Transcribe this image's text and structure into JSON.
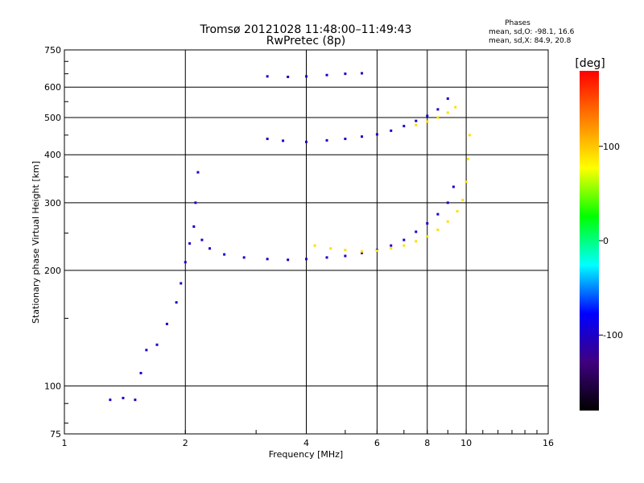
{
  "chart_data": {
    "type": "scatter",
    "title": "Tromsø 20121028 11:48:00–11:49:43",
    "subtitle": "RwPretec (8p)",
    "xlabel": "Frequency [MHz]",
    "ylabel": "Stationary phase Virtual Height [km]",
    "x_scale": "log",
    "y_scale": "log",
    "xlim": [
      1,
      16
    ],
    "ylim": [
      75,
      750
    ],
    "x_ticks": [
      1,
      2,
      4,
      6,
      8,
      10,
      16
    ],
    "y_ticks": [
      75,
      100,
      200,
      300,
      400,
      500,
      600,
      750
    ],
    "grid": true,
    "legend_title": "Phases",
    "legend_lines": [
      "mean, sd,O: -98.1, 16.6",
      "mean, sd,X:  84.9, 20.8"
    ],
    "colorbar": {
      "label": "[deg]",
      "range": [
        -180,
        180
      ],
      "ticks": [
        100,
        0,
        -100
      ],
      "colors": [
        "#ff0000",
        "#ff8000",
        "#ffff00",
        "#00ff00",
        "#00ffff",
        "#0000ff",
        "#400080",
        "#000000"
      ]
    },
    "series": [
      {
        "mode": "O",
        "phase": -100,
        "points": [
          [
            1.3,
            92
          ],
          [
            1.4,
            93
          ],
          [
            1.5,
            92
          ],
          [
            1.55,
            108
          ],
          [
            1.6,
            124
          ],
          [
            1.7,
            128
          ],
          [
            1.8,
            145
          ],
          [
            1.9,
            165
          ],
          [
            1.95,
            185
          ],
          [
            2.0,
            210
          ],
          [
            2.05,
            235
          ],
          [
            2.1,
            260
          ],
          [
            2.12,
            300
          ],
          [
            2.15,
            360
          ],
          [
            2.2,
            240
          ],
          [
            2.3,
            228
          ],
          [
            2.5,
            220
          ],
          [
            2.8,
            216
          ],
          [
            3.2,
            214
          ],
          [
            3.6,
            213
          ],
          [
            4.0,
            214
          ],
          [
            4.5,
            216
          ],
          [
            5.0,
            218
          ],
          [
            5.5,
            222
          ],
          [
            6.0,
            226
          ],
          [
            6.5,
            232
          ],
          [
            7.0,
            240
          ],
          [
            7.5,
            252
          ],
          [
            8.0,
            265
          ],
          [
            8.5,
            280
          ],
          [
            9.0,
            300
          ],
          [
            9.3,
            330
          ],
          [
            3.2,
            440
          ],
          [
            3.5,
            435
          ],
          [
            4.0,
            432
          ],
          [
            4.5,
            436
          ],
          [
            5.0,
            440
          ],
          [
            5.5,
            446
          ],
          [
            6.0,
            452
          ],
          [
            6.5,
            462
          ],
          [
            7.0,
            475
          ],
          [
            7.5,
            490
          ],
          [
            8.0,
            505
          ],
          [
            8.5,
            525
          ],
          [
            9.0,
            560
          ],
          [
            3.2,
            640
          ],
          [
            3.6,
            638
          ],
          [
            4.0,
            640
          ],
          [
            4.5,
            645
          ],
          [
            5.0,
            650
          ],
          [
            5.5,
            652
          ]
        ]
      },
      {
        "mode": "X",
        "phase": 90,
        "points": [
          [
            4.2,
            232
          ],
          [
            4.6,
            228
          ],
          [
            5.0,
            226
          ],
          [
            5.5,
            224
          ],
          [
            6.0,
            225
          ],
          [
            6.5,
            228
          ],
          [
            7.0,
            232
          ],
          [
            7.5,
            238
          ],
          [
            8.0,
            245
          ],
          [
            8.5,
            255
          ],
          [
            9.0,
            268
          ],
          [
            9.5,
            285
          ],
          [
            9.8,
            305
          ],
          [
            10.0,
            340
          ],
          [
            10.1,
            390
          ],
          [
            10.2,
            450
          ],
          [
            7.5,
            478
          ],
          [
            8.0,
            488
          ],
          [
            8.5,
            500
          ],
          [
            9.0,
            515
          ],
          [
            9.4,
            532
          ]
        ]
      }
    ]
  }
}
